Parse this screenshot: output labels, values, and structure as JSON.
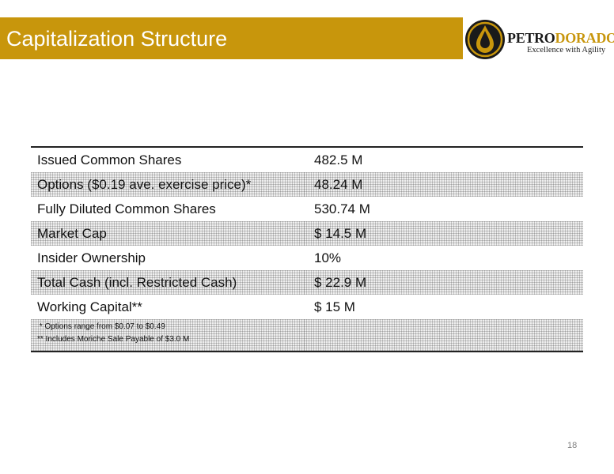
{
  "slide": {
    "title": "Capitalization Structure",
    "page_number": "18"
  },
  "logo": {
    "name_part1": "PETRO",
    "name_part2": "DORADO",
    "tagline": "Excellence with Agility",
    "icon": "oil-drop-logo-icon",
    "colors": {
      "gold": "#c8960c",
      "dark": "#1a1a1a"
    }
  },
  "table": {
    "rows": [
      {
        "label": "Issued Common Shares",
        "value": "482.5 M"
      },
      {
        "label": "Options ($0.19 ave. exercise price)*",
        "value": "48.24 M"
      },
      {
        "label": "Fully Diluted Common Shares",
        "value": "530.74 M"
      },
      {
        "label": "Market Cap",
        "value": "$ 14.5 M"
      },
      {
        "label": "Insider Ownership",
        "value": "10%"
      },
      {
        "label": "Total Cash (incl. Restricted Cash)",
        "value": "$ 22.9 M"
      },
      {
        "label": "Working Capital**",
        "value": "$ 15 M"
      }
    ],
    "notes": [
      " * Options range from $0.07 to $0.49",
      "** Includes Moriche Sale Payable of $3.0 M"
    ]
  },
  "theme": {
    "accent": "#c8960c",
    "title_text": "#ffffff",
    "rule": "#222222"
  }
}
